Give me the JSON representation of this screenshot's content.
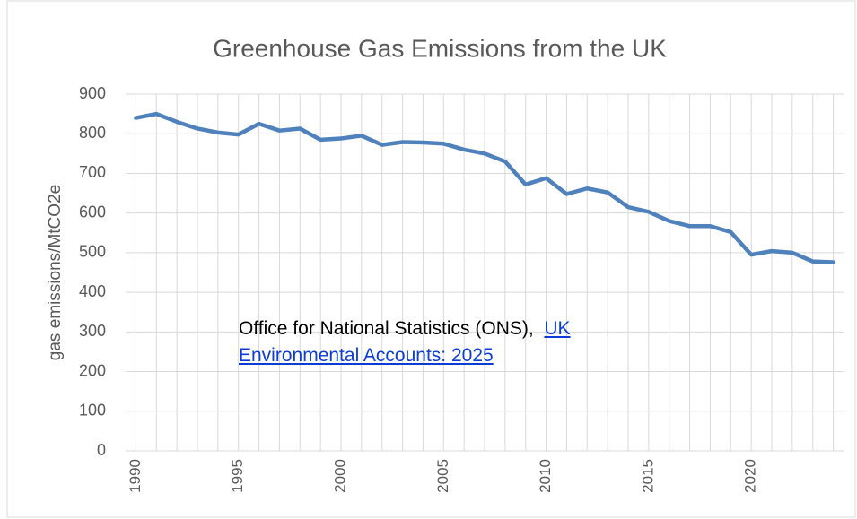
{
  "chart_data": {
    "type": "line",
    "title": "Greenhouse Gas Emissions from the UK",
    "y_label": "gas emissions/MtCO2e",
    "annotation": {
      "text": "Office for National Statistics (ONS),",
      "link": "UK Environmental Accounts: 2025"
    },
    "x": [
      1990,
      1991,
      1992,
      1993,
      1994,
      1995,
      1996,
      1997,
      1998,
      1999,
      2000,
      2001,
      2002,
      2003,
      2004,
      2005,
      2006,
      2007,
      2008,
      2009,
      2010,
      2011,
      2012,
      2013,
      2014,
      2015,
      2016,
      2017,
      2018,
      2019,
      2020,
      2021,
      2022,
      2023,
      2024
    ],
    "series": [
      {
        "name": "UK",
        "color": "#4f81bd",
        "values": [
          840,
          850,
          830,
          813,
          803,
          798,
          825,
          808,
          813,
          785,
          788,
          795,
          772,
          779,
          778,
          775,
          760,
          750,
          730,
          672,
          688,
          648,
          662,
          652,
          615,
          603,
          580,
          567,
          567,
          552,
          495,
          504,
          500,
          478,
          476
        ]
      }
    ],
    "xlim": [
      1989.5,
      2024.5
    ],
    "xticks": [
      1990,
      1995,
      2000,
      2005,
      2010,
      2015,
      2020
    ],
    "ylim": [
      0,
      900
    ],
    "yticks": [
      0,
      100,
      200,
      300,
      400,
      500,
      600,
      700,
      800,
      900
    ],
    "grid": true
  }
}
